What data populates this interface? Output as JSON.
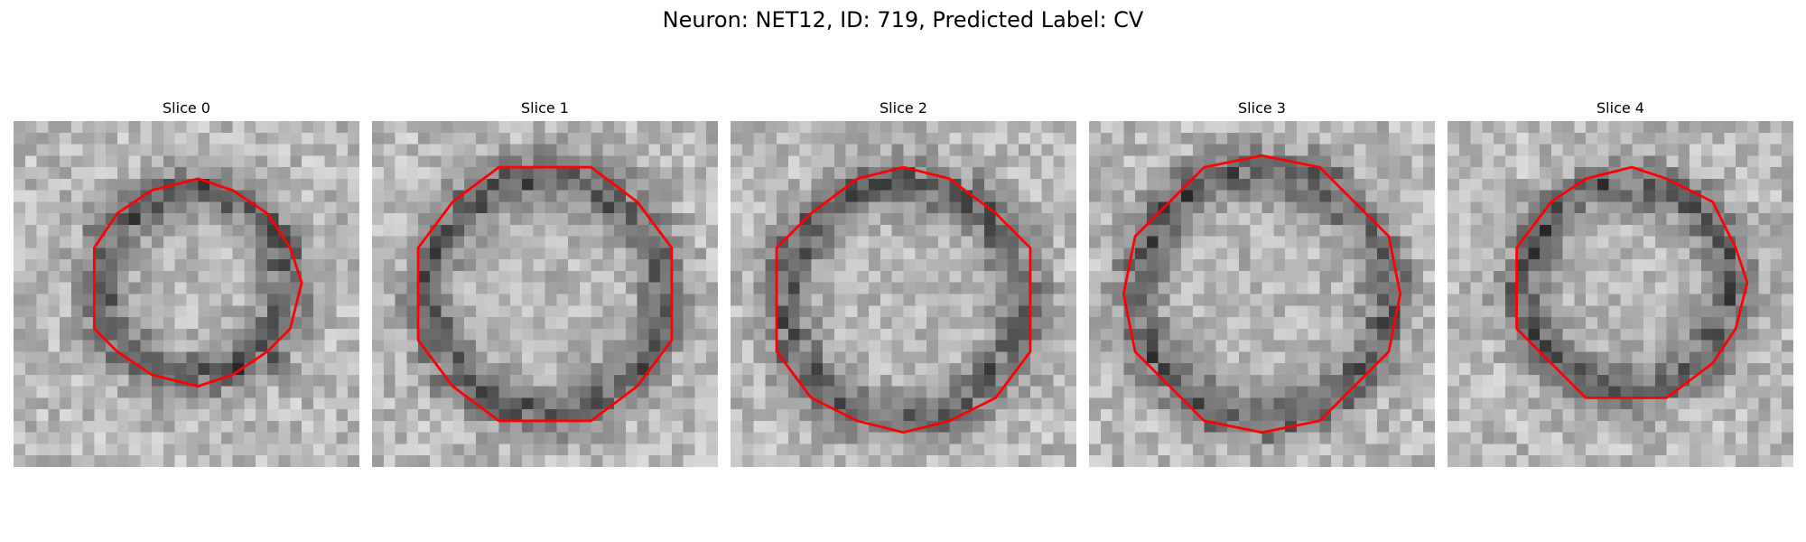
{
  "figure": {
    "title": "Neuron: NET12, ID: 719, Predicted Label: CV"
  },
  "colors": {
    "contour": "#ff0000",
    "colormap": "grayscale"
  },
  "slices": [
    {
      "label": "Slice 0",
      "seed": 11,
      "blob": [
        0.52,
        0.47
      ],
      "radius": 0.3
    },
    {
      "label": "Slice 1",
      "seed": 23,
      "blob": [
        0.5,
        0.5
      ],
      "radius": 0.38
    },
    {
      "label": "Slice 2",
      "seed": 37,
      "blob": [
        0.5,
        0.52
      ],
      "radius": 0.38
    },
    {
      "label": "Slice 3",
      "seed": 41,
      "blob": [
        0.5,
        0.5
      ],
      "radius": 0.4
    },
    {
      "label": "Slice 4",
      "seed": 53,
      "blob": [
        0.52,
        0.48
      ],
      "radius": 0.33
    }
  ]
}
